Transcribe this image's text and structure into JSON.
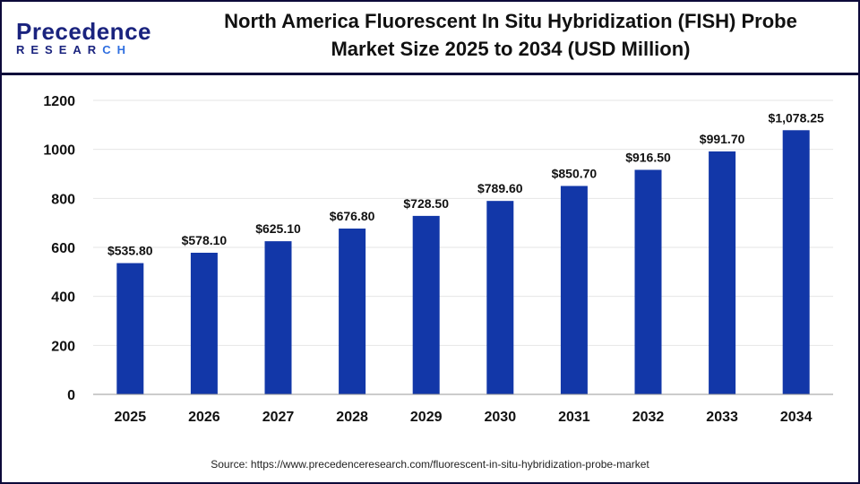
{
  "logo": {
    "main": "Precedence",
    "sub_a": "RESEAR",
    "sub_b": "CH"
  },
  "title_line1": "North America Fluorescent In Situ Hybridization (FISH) Probe",
  "title_line2": "Market Size 2025 to 2034 (USD Million)",
  "source": "Source: https://www.precedenceresearch.com/fluorescent-in-situ-hybridization-probe-market",
  "colors": {
    "bar": "#1237a8",
    "border": "#0d0a3a"
  },
  "chart_data": {
    "type": "bar",
    "categories": [
      "2025",
      "2026",
      "2027",
      "2028",
      "2029",
      "2030",
      "2031",
      "2032",
      "2033",
      "2034"
    ],
    "values": [
      535.8,
      578.1,
      625.1,
      676.8,
      728.5,
      789.6,
      850.7,
      916.5,
      991.7,
      1078.25
    ],
    "data_labels": [
      "$535.80",
      "$578.10",
      "$625.10",
      "$676.80",
      "$728.50",
      "$789.60",
      "$850.70",
      "$916.50",
      "$991.70",
      "$1,078.25"
    ],
    "yticks": [
      0,
      200,
      400,
      600,
      800,
      1000,
      1200
    ],
    "ylim": [
      0,
      1200
    ],
    "grid": true,
    "legend": "none"
  }
}
